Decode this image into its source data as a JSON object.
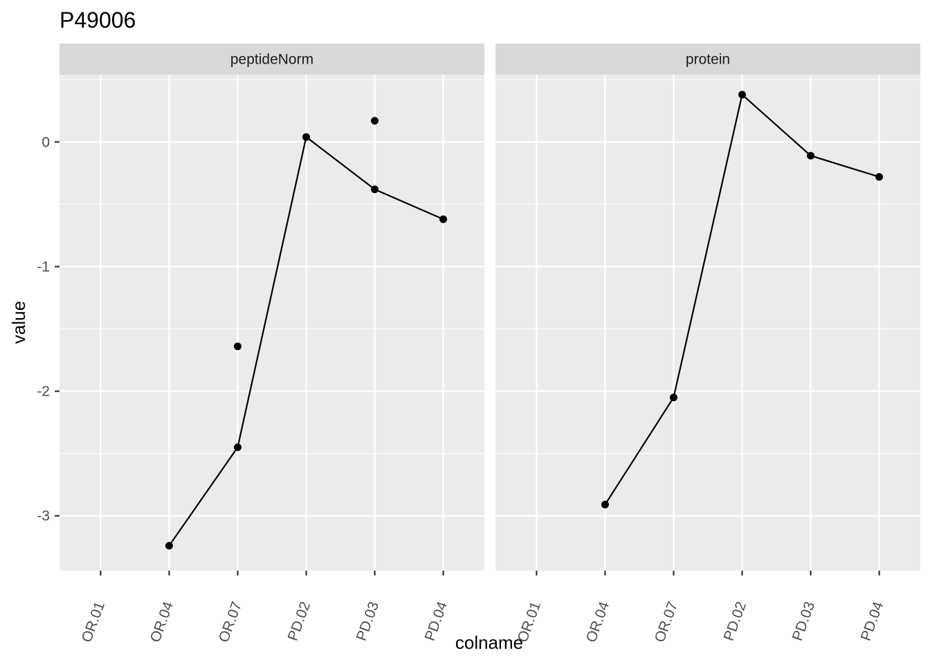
{
  "chart_data": {
    "type": "line",
    "title": "P49006",
    "xlabel": "colname",
    "ylabel": "value",
    "categories": [
      "OR.01",
      "OR.04",
      "OR.07",
      "PD.02",
      "PD.03",
      "PD.04"
    ],
    "y_ticks": [
      0,
      -1,
      -2,
      -3
    ],
    "y_tick_labels": [
      "0",
      "-1",
      "-2",
      "-3"
    ],
    "ylim": [
      -3.44,
      0.54
    ],
    "grid": true,
    "panels": [
      {
        "label": "peptideNorm",
        "points": [
          {
            "x": "OR.04",
            "y": -3.24
          },
          {
            "x": "OR.07",
            "y": -1.64
          },
          {
            "x": "OR.07",
            "y": -2.45
          },
          {
            "x": "PD.02",
            "y": 0.04
          },
          {
            "x": "PD.03",
            "y": 0.17
          },
          {
            "x": "PD.03",
            "y": -0.38
          },
          {
            "x": "PD.04",
            "y": -0.62
          }
        ],
        "line": [
          {
            "x": "OR.04",
            "y": -3.24
          },
          {
            "x": "OR.07",
            "y": -2.45
          },
          {
            "x": "PD.02",
            "y": 0.04
          },
          {
            "x": "PD.03",
            "y": -0.38
          },
          {
            "x": "PD.04",
            "y": -0.62
          }
        ]
      },
      {
        "label": "protein",
        "points": [
          {
            "x": "OR.04",
            "y": -2.91
          },
          {
            "x": "OR.07",
            "y": -2.05
          },
          {
            "x": "PD.02",
            "y": 0.38
          },
          {
            "x": "PD.03",
            "y": -0.11
          },
          {
            "x": "PD.04",
            "y": -0.28
          }
        ],
        "line": [
          {
            "x": "OR.04",
            "y": -2.91
          },
          {
            "x": "OR.07",
            "y": -2.05
          },
          {
            "x": "PD.02",
            "y": 0.38
          },
          {
            "x": "PD.03",
            "y": -0.11
          },
          {
            "x": "PD.04",
            "y": -0.28
          }
        ]
      }
    ],
    "colors": {
      "panel_bg": "#ebebeb",
      "strip_bg": "#d9d9d9",
      "grid": "#ffffff",
      "ink": "#000000",
      "tick": "#333333"
    }
  }
}
